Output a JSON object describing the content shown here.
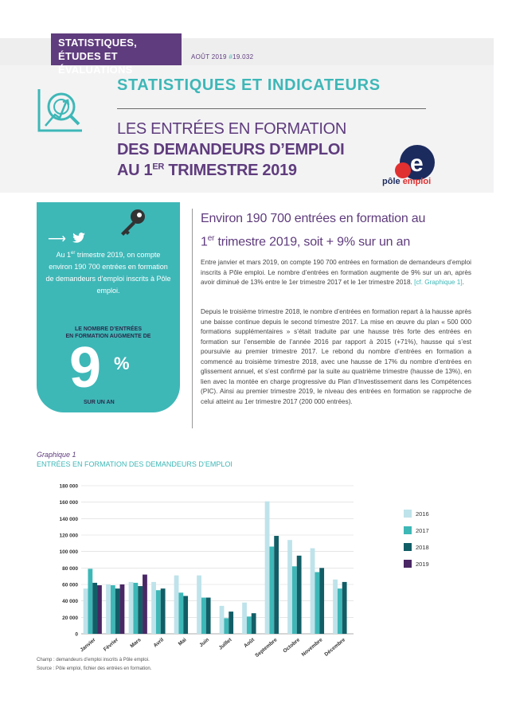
{
  "header": {
    "department_line1": "STATISTIQUES,",
    "department_line2": "ÉTUDES ET ÉVALUATIONS",
    "date": "AOÛT 2019",
    "issue_hash": "#",
    "issue": "19.032",
    "section_title": "STATISTIQUES ET INDICATEURS",
    "subtitle_line1": "LES ENTRÉES EN FORMATION",
    "subtitle_line2": "DES DEMANDEURS D’EMPLOI",
    "subtitle_line3_pre": "AU 1",
    "subtitle_line3_sup": "ER",
    "subtitle_line3_post": " TRIMESTRE 2019",
    "logo_text_1": "pôle",
    "logo_text_2": "emploi"
  },
  "card": {
    "text_pre": "Au 1",
    "text_sup": "er",
    "text_post": " trimestre 2019, on compte environ 190 700 entrées en formation de demandeurs d’emploi inscrits à Pôle emploi.",
    "label_line1": "LE NOMBRE D’ENTRÉES",
    "label_line2": "EN FORMATION AUGMENTE DE",
    "big_value": "9",
    "percent": "%",
    "sub_label": "SUR UN AN",
    "icons": [
      "arrow-right-icon",
      "twitter-icon",
      "key-icon"
    ]
  },
  "lead": {
    "line1": "Environ 190 700 entrées en formation au",
    "line2_pre": "1",
    "line2_sup": "er",
    "line2_post": " trimestre 2019, soit + 9% sur un an"
  },
  "paragraphs": {
    "p1_a": "Entre janvier et mars 2019, on compte 190 700 entrées en formation de demandeurs d’emploi inscrits à Pôle emploi. Le nombre d’entrées en formation augmente de 9% sur un an, après avoir diminué de 13% entre le 1er trimestre 2017 et le 1er trimestre 2018. ",
    "p1_ref": "[cf. Graphique 1]",
    "p1_end": ".",
    "p2": "Depuis le troisième trimestre 2018, le nombre d’entrées en formation repart à la hausse après une baisse continue depuis le second trimestre 2017. La mise en œuvre du plan « 500 000 formations supplémentaires » s’était traduite par une hausse très forte des entrées en formation sur l’ensemble de l’année 2016 par rapport à 2015 (+71%), hausse qui s’est poursuivie au premier trimestre 2017. Le rebond du nombre d’entrées en formation a commencé au troisième trimestre 2018, avec une hausse de 17% du nombre d’entrées en glissement annuel, et s’est confirmé par la suite au quatrième trimestre (hausse de 13%), en lien avec la montée en charge progressive du Plan d’Investissement dans les Compétences (PIC). Ainsi au premier trimestre 2019, le niveau des entrées en formation se rapproche de celui atteint au 1er trimestre 2017 (200 000 entrées)."
  },
  "graph": {
    "caption": "Graphique 1",
    "title": "ENTRÉES EN FORMATION DES DEMANDEURS D’EMPLOI",
    "champ": "Champ : demandeurs d’emploi inscrits à Pôle emploi.",
    "source": "Source : Pôle emploi, fichier des entrées en formation."
  },
  "colors": {
    "purple": "#5f3c7d",
    "teal": "#3eb7b7",
    "s2016": "#bfe3ea",
    "s2017": "#3eb7b7",
    "s2018": "#125e67",
    "s2019": "#4a2765"
  },
  "chart_data": {
    "type": "bar",
    "categories": [
      "Janvier",
      "Février",
      "Mars",
      "Avril",
      "Mai",
      "Juin",
      "Juillet",
      "Août",
      "Septembre",
      "Octobre",
      "Novembre",
      "Décembre"
    ],
    "ylim": [
      0,
      180000
    ],
    "yticks": [
      "0",
      "20 000",
      "40 000",
      "60 000",
      "80 000",
      "100 000",
      "120 000",
      "140 000",
      "160 000",
      "180 000"
    ],
    "legend_position": "right",
    "series": [
      {
        "name": "2016",
        "color": "#bfe3ea",
        "values": [
          55000,
          60000,
          63000,
          63000,
          71000,
          71000,
          34000,
          38000,
          161000,
          114000,
          104000,
          66000
        ]
      },
      {
        "name": "2017",
        "color": "#3eb7b7",
        "values": [
          79000,
          59000,
          62000,
          53000,
          50000,
          44000,
          19000,
          21000,
          106000,
          82000,
          75000,
          55000
        ]
      },
      {
        "name": "2018",
        "color": "#125e67",
        "values": [
          62000,
          55000,
          58000,
          55000,
          46000,
          44000,
          27000,
          25000,
          119000,
          95000,
          80000,
          63000
        ]
      },
      {
        "name": "2019",
        "color": "#4a2765",
        "values": [
          59000,
          60000,
          72000,
          null,
          null,
          null,
          null,
          null,
          null,
          null,
          null,
          null
        ]
      }
    ]
  }
}
